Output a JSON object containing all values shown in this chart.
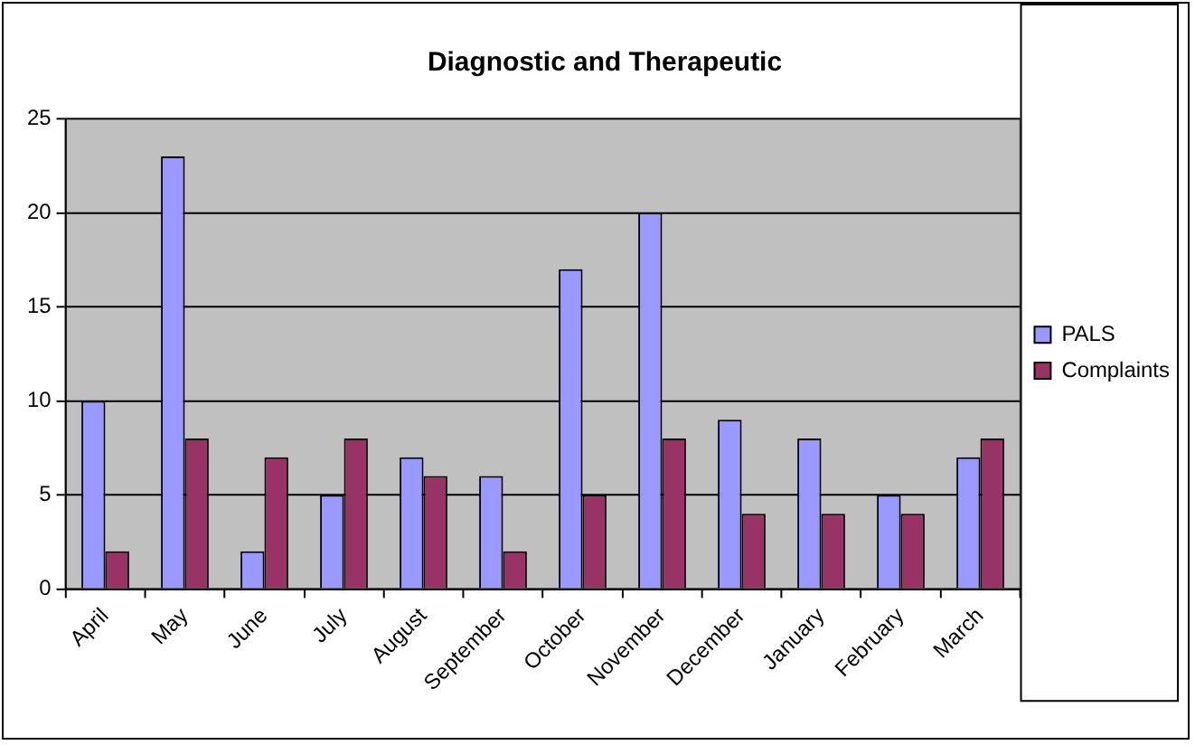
{
  "chart_data": {
    "type": "bar",
    "title": "Diagnostic and Therapeutic",
    "categories": [
      "April",
      "May",
      "June",
      "July",
      "August",
      "September",
      "October",
      "November",
      "December",
      "January",
      "February",
      "March"
    ],
    "series": [
      {
        "name": "PALS",
        "color": "#9999ff",
        "values": [
          10,
          23,
          2,
          5,
          7,
          6,
          17,
          20,
          9,
          8,
          5,
          7
        ]
      },
      {
        "name": "Complaints",
        "color": "#993366",
        "values": [
          2,
          8,
          7,
          8,
          6,
          2,
          5,
          8,
          4,
          4,
          4,
          8
        ]
      }
    ],
    "ylim": [
      0,
      25
    ],
    "yticks": [
      0,
      5,
      10,
      15,
      20,
      25
    ],
    "grid": "y",
    "legend": "right"
  }
}
